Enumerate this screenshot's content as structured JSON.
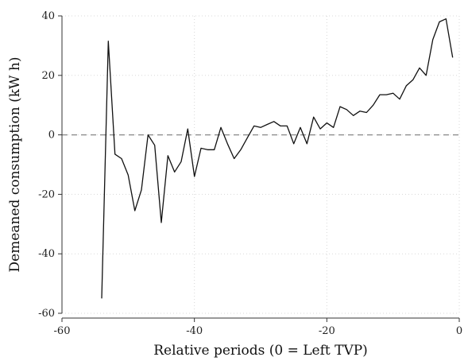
{
  "chart_data": {
    "type": "line",
    "title": "",
    "xlabel": "Relative periods (0 = Left TVP)",
    "ylabel": "Demeaned consumption (kW h)",
    "xlim": [
      -60,
      0
    ],
    "ylim": [
      -60,
      40
    ],
    "xticks": [
      -60,
      -40,
      -20,
      0
    ],
    "xtick_labels": [
      "-60",
      "-40",
      "-20",
      "0"
    ],
    "yticks": [
      -60,
      -40,
      -20,
      0,
      20,
      40
    ],
    "ytick_labels": [
      "-60",
      "-40",
      "-20",
      "0",
      "20",
      "40"
    ],
    "grid": true,
    "reference_line": {
      "y": 0,
      "style": "dashed"
    },
    "colors": {
      "line": "#111111",
      "grid": "#d8d8d8",
      "reference": "#888888",
      "axis": "#333333"
    },
    "series": [
      {
        "x": [
          -54,
          -53,
          -52,
          -51,
          -50,
          -49,
          -48,
          -47,
          -46,
          -45,
          -44,
          -43,
          -42,
          -41,
          -40,
          -39,
          -38,
          -37,
          -36,
          -35,
          -34,
          -33,
          -32,
          -31,
          -30,
          -29,
          -28,
          -27,
          -26,
          -25,
          -24,
          -23,
          -22,
          -21,
          -20,
          -19,
          -18,
          -17,
          -16,
          -15,
          -14,
          -13,
          -12,
          -11,
          -10,
          -9,
          -8,
          -7,
          -6,
          -5,
          -4,
          -3,
          -2,
          -1
        ],
        "y": [
          -55,
          31.5,
          -6.5,
          -8,
          -13.5,
          -25.5,
          -18.5,
          0,
          -3.5,
          -29.5,
          -7,
          -12.5,
          -9,
          2,
          -14,
          -4.5,
          -5,
          -5,
          2.5,
          -3,
          -8,
          -5,
          -1,
          3,
          2.5,
          3.5,
          4.5,
          3,
          3,
          -3,
          2.5,
          -3,
          6,
          2,
          4,
          2.5,
          9.5,
          8.5,
          6.5,
          8,
          7.5,
          10,
          13.5,
          13.5,
          14,
          12,
          16.5,
          18.5,
          22.5,
          20,
          32,
          38,
          39,
          26
        ]
      }
    ]
  }
}
